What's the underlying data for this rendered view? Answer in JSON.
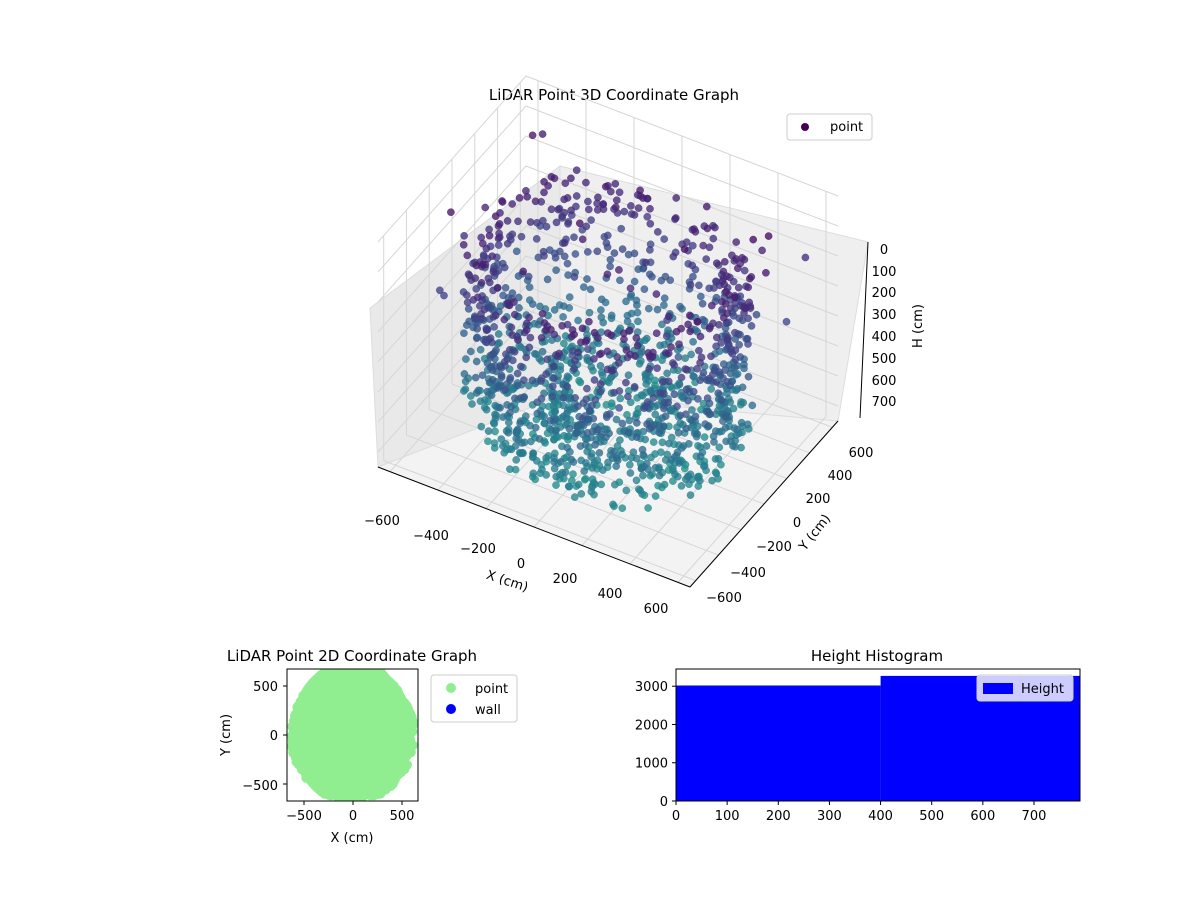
{
  "chart_data": [
    {
      "type": "scatter3d",
      "title": "LiDAR Point 3D Coordinate Graph",
      "xlabel": "X (cm)",
      "ylabel": "Y (cm)",
      "zlabel": "H (cm)",
      "xlim": [
        -650,
        650
      ],
      "ylim": [
        -650,
        650
      ],
      "zlim": [
        0,
        750
      ],
      "z_inverted": true,
      "x_ticks": [
        "−600",
        "−400",
        "−200",
        "0",
        "200",
        "400",
        "600"
      ],
      "y_ticks": [
        "−600",
        "−400",
        "−200",
        "0",
        "200",
        "400",
        "600"
      ],
      "z_ticks": [
        "0",
        "100",
        "200",
        "300",
        "400",
        "500",
        "600",
        "700"
      ],
      "grid": true,
      "legend": {
        "placement": "upper-right",
        "entries": [
          "point"
        ]
      },
      "series": [
        {
          "name": "point",
          "color": "#440154",
          "colormap": "viridis"
        }
      ],
      "description_of_shape": "ring wall ~500 cm radius, points concentrated at heights 100-650"
    },
    {
      "type": "scatter",
      "title": "LiDAR Point 2D Coordinate Graph",
      "xlabel": "X (cm)",
      "ylabel": "Y (cm)",
      "xlim": [
        -680,
        680
      ],
      "ylim": [
        -680,
        680
      ],
      "x_ticks": [
        "−500",
        "0",
        "500"
      ],
      "y_ticks": [
        "−500",
        "0",
        "500"
      ],
      "legend": {
        "placement": "outside-right",
        "entries": [
          "point",
          "wall"
        ]
      },
      "series": [
        {
          "name": "point",
          "color": "#90ee90"
        },
        {
          "name": "wall",
          "color": "#0000ff"
        }
      ]
    },
    {
      "type": "bar",
      "title": "Height Histogram",
      "xlim": [
        0,
        790
      ],
      "ylim": [
        0,
        3450
      ],
      "x_ticks": [
        "0",
        "100",
        "200",
        "300",
        "400",
        "500",
        "600",
        "700"
      ],
      "y_ticks": [
        "0",
        "1000",
        "2000",
        "3000"
      ],
      "legend": {
        "placement": "upper-right",
        "entries": [
          "Height"
        ]
      },
      "series": [
        {
          "name": "Height",
          "color": "#0000ff",
          "bins": [
            {
              "start": 0,
              "end": 400,
              "value": 3020
            },
            {
              "start": 400,
              "end": 790,
              "value": 3270
            }
          ]
        }
      ]
    }
  ]
}
